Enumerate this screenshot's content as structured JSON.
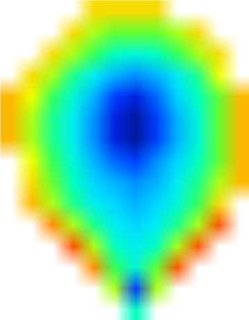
{
  "chart_data": {
    "type": "contour",
    "tick_labels": false,
    "zlim": [
      0,
      10
    ],
    "colors": [
      "#00105e",
      "#0028ff",
      "#0090ff",
      "#00e8ff",
      "#00ffc0",
      "#40ff40",
      "#f0ff00",
      "#ffa800",
      "#ff1a00"
    ],
    "z": [
      [
        null,
        null,
        null,
        null,
        8,
        8,
        8,
        8,
        null,
        null,
        null,
        null
      ],
      [
        null,
        null,
        null,
        8,
        7,
        6.5,
        6.5,
        6.5,
        7,
        8,
        null,
        null
      ],
      [
        null,
        null,
        8,
        7,
        6,
        5,
        4.5,
        5,
        6,
        7,
        8,
        null
      ],
      [
        null,
        8,
        7,
        5.5,
        4,
        3,
        2.5,
        3,
        4,
        5.5,
        7.5,
        null
      ],
      [
        8.5,
        7.5,
        6,
        4.5,
        3,
        1.5,
        1,
        2,
        3.5,
        5,
        6.5,
        8.5
      ],
      [
        8.5,
        7,
        5.5,
        4,
        2.5,
        1,
        0.5,
        1.5,
        3,
        4.5,
        6.5,
        8.5
      ],
      [
        8.5,
        7,
        5.5,
        4,
        2.5,
        1,
        0.5,
        1.5,
        3,
        4.5,
        6.5,
        8.5
      ],
      [
        null,
        7.5,
        6,
        4.5,
        3,
        2,
        1.5,
        2.5,
        3.5,
        5,
        6.5,
        8.5
      ],
      [
        null,
        8,
        6.5,
        5,
        3.5,
        3,
        2.5,
        3,
        4,
        5.5,
        7,
        8.5
      ],
      [
        null,
        8.5,
        7,
        5.5,
        4,
        3.5,
        3,
        3.5,
        4.5,
        6,
        8,
        null
      ],
      [
        null,
        null,
        9,
        7,
        5.5,
        4,
        3.5,
        4,
        5.5,
        7,
        9.5,
        null
      ],
      [
        null,
        null,
        null,
        9.5,
        7,
        5,
        4,
        5,
        7,
        9.5,
        null,
        null
      ],
      [
        null,
        null,
        null,
        null,
        9,
        6,
        4.5,
        6.5,
        9.5,
        null,
        null,
        null
      ],
      [
        null,
        null,
        null,
        null,
        null,
        7,
        1.5,
        7,
        null,
        null,
        null,
        null
      ],
      [
        null,
        null,
        null,
        null,
        null,
        null,
        5,
        null,
        null,
        null,
        null,
        null
      ]
    ]
  }
}
